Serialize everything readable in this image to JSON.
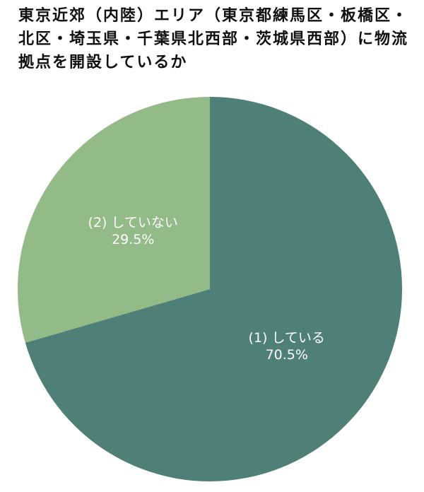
{
  "chart_data": {
    "type": "pie",
    "title": "東京近郊（内陸）エリア（東京都練馬区・板橋区・北区・埼玉県・千葉県北西部・茨城県西部）に物流拠点を開設しているか",
    "categories": [
      "(1) している",
      "(2) していない"
    ],
    "values": [
      70.5,
      29.5
    ],
    "value_labels": [
      "70.5%",
      "29.5%"
    ],
    "colors": [
      "#4e8077",
      "#93bb87"
    ]
  }
}
